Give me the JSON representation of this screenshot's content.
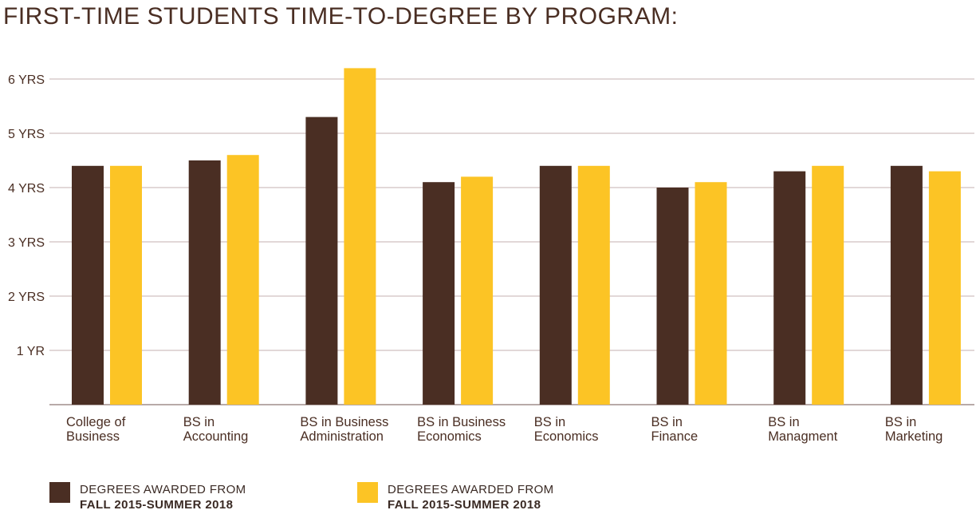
{
  "title": "FIRST-TIME STUDENTS TIME-TO-DEGREE BY PROGRAM:",
  "colors": {
    "series1": "#4a2e23",
    "series2": "#fcc425",
    "grid": "#d8cccc",
    "text": "#4a2e23"
  },
  "chart_data": {
    "type": "bar",
    "title": "FIRST-TIME STUDENTS TIME-TO-DEGREE BY PROGRAM:",
    "categories": [
      [
        "College of",
        "Business"
      ],
      [
        "BS in",
        "Accounting"
      ],
      [
        "BS in Business",
        "Administration"
      ],
      [
        "BS in Business",
        "Economics"
      ],
      [
        "BS in",
        "Economics"
      ],
      [
        "BS in",
        "Finance"
      ],
      [
        "BS in",
        "Managment"
      ],
      [
        "BS in",
        "Marketing"
      ]
    ],
    "series": [
      {
        "values": [
          4.4,
          4.5,
          5.3,
          4.1,
          4.4,
          4.0,
          4.3,
          4.4
        ]
      },
      {
        "values": [
          4.4,
          4.6,
          6.2,
          4.2,
          4.4,
          4.1,
          4.4,
          4.3
        ]
      }
    ],
    "y_ticks": [
      {
        "value": 1,
        "label": "1 YR"
      },
      {
        "value": 2,
        "label": "2 YRS"
      },
      {
        "value": 3,
        "label": "3 YRS"
      },
      {
        "value": 4,
        "label": "4 YRS"
      },
      {
        "value": 5,
        "label": "5 YRS"
      },
      {
        "value": 6,
        "label": "6 YRS"
      }
    ],
    "ylim": [
      0,
      6
    ],
    "grid": true,
    "legend_position": "bottom-left"
  },
  "legend": [
    {
      "line1": "DEGREES AWARDED FROM",
      "line2": "FALL 2015-SUMMER 2018"
    },
    {
      "line1": "DEGREES AWARDED FROM",
      "line2": "FALL 2015-SUMMER 2018"
    }
  ]
}
